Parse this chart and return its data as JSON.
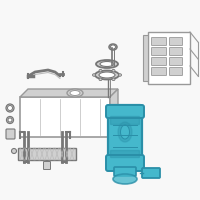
{
  "background_color": "#f8f8f8",
  "line_color": "#999999",
  "highlight_color": "#45b8cc",
  "highlight_edge": "#2a8fa8",
  "dark_line": "#777777",
  "light_line": "#bbbbbb",
  "shadow": "#d0d0d0",
  "white": "#ffffff",
  "fig_width": 2.0,
  "fig_height": 2.0,
  "dpi": 100
}
